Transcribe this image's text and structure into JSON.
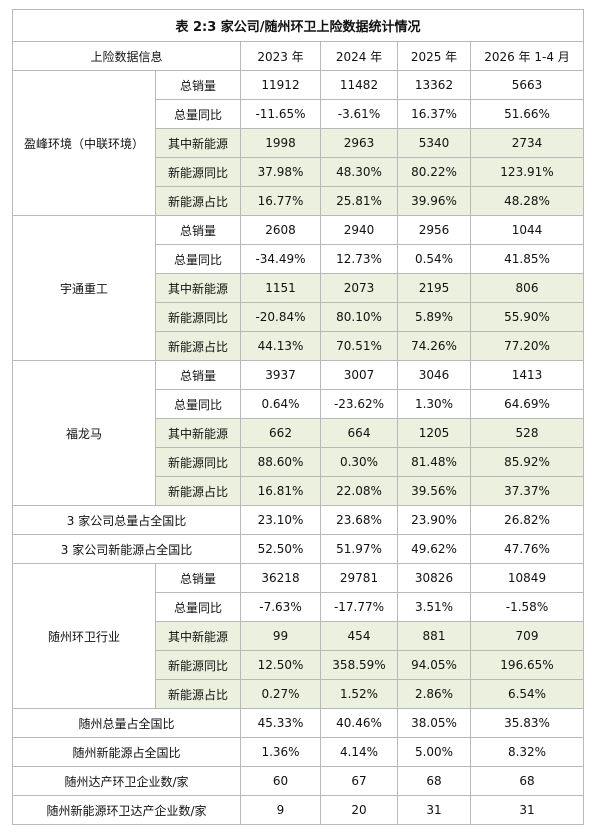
{
  "title": "表 2:3 家公司/随州环卫上险数据统计情况",
  "header": [
    "上险数据信息",
    "2023 年",
    "2024 年",
    "2025 年",
    "2026 年 1-4 月"
  ],
  "sections": [
    {
      "name": "盈峰环境（中联环境）",
      "rows": [
        {
          "label": "总销量",
          "values": [
            11912,
            11482,
            13362,
            5663
          ]
        },
        {
          "label": "总量同比",
          "values": [
            "-11.65%",
            "-3.61%",
            "16.37%",
            "51.66%"
          ]
        },
        {
          "label": "其中新能源",
          "values": [
            1998,
            2963,
            5340,
            2734
          ]
        },
        {
          "label": "新能源同比",
          "values": [
            "37.98%",
            "48.30%",
            "80.22%",
            "123.91%"
          ]
        },
        {
          "label": "新能源占比",
          "values": [
            "16.77%",
            "25.81%",
            "39.96%",
            "48.28%"
          ]
        }
      ]
    },
    {
      "name": "宇通重工",
      "rows": [
        {
          "label": "总销量",
          "values": [
            2608,
            2940,
            2956,
            1044
          ]
        },
        {
          "label": "总量同比",
          "values": [
            "-34.49%",
            "12.73%",
            "0.54%",
            "41.85%"
          ]
        },
        {
          "label": "其中新能源",
          "values": [
            1151,
            2073,
            2195,
            806
          ]
        },
        {
          "label": "新能源同比",
          "values": [
            "-20.84%",
            "80.10%",
            "5.89%",
            "55.90%"
          ]
        },
        {
          "label": "新能源占比",
          "values": [
            "44.13%",
            "70.51%",
            "74.26%",
            "77.20%"
          ]
        }
      ]
    },
    {
      "name": "福龙马",
      "rows": [
        {
          "label": "总销量",
          "values": [
            3937,
            3007,
            3046,
            1413
          ]
        },
        {
          "label": "总量同比",
          "values": [
            "0.64%",
            "-23.62%",
            "1.30%",
            "64.69%"
          ]
        },
        {
          "label": "其中新能源",
          "values": [
            662,
            664,
            1205,
            528
          ]
        },
        {
          "label": "新能源同比",
          "values": [
            "88.60%",
            "0.30%",
            "81.48%",
            "85.92%"
          ]
        },
        {
          "label": "新能源占比",
          "values": [
            "16.81%",
            "22.08%",
            "39.56%",
            "37.37%"
          ]
        }
      ]
    },
    {
      "label": "3 家公司总量占全国比",
      "values": [
        "23.10%",
        "23.68%",
        "23.90%",
        "26.82%"
      ]
    },
    {
      "label": "3 家公司新能源占全国比",
      "values": [
        "52.50%",
        "51.97%",
        "49.62%",
        "47.76%"
      ]
    },
    {
      "name": "随州环卫行业",
      "rows": [
        {
          "label": "总销量",
          "values": [
            36218,
            29781,
            30826,
            10849
          ]
        },
        {
          "label": "总量同比",
          "values": [
            "-7.63%",
            "-17.77%",
            "3.51%",
            "-1.58%"
          ]
        },
        {
          "label": "其中新能源",
          "values": [
            99,
            454,
            881,
            709
          ]
        },
        {
          "label": "新能源同比",
          "values": [
            "12.50%",
            "358.59%",
            "94.05%",
            "196.65%"
          ]
        },
        {
          "label": "新能源占比",
          "values": [
            "0.27%",
            "1.52%",
            "2.86%",
            "6.54%"
          ]
        }
      ]
    },
    {
      "label": "随州总量占全国比",
      "values": [
        "45.33%",
        "40.46%",
        "38.05%",
        "35.83%"
      ]
    },
    {
      "label": "随州新能源占全国比",
      "values": [
        "1.36%",
        "4.14%",
        "5.00%",
        "8.32%"
      ]
    },
    {
      "label": "随州达产环卫企业数/家",
      "values": [
        60,
        67,
        68,
        68
      ]
    },
    {
      "label": "随州新能源环卫达产企业数/家",
      "values": [
        9,
        20,
        31,
        31
      ]
    }
  ]
}
